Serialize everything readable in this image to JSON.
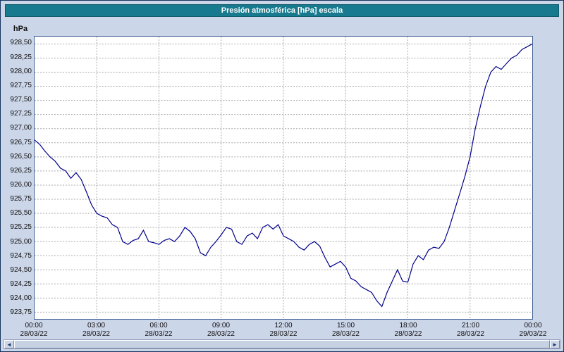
{
  "window": {
    "title": "Presión atmosférica [hPa] escala"
  },
  "colors": {
    "header_bg": "#187a8e",
    "window_bg": "#ccd6e9",
    "line": "#00008b",
    "grid": "#a8a8a8",
    "plot_border": "#3d5d91"
  },
  "scrollbar": {
    "left_arrow": "◄",
    "right_arrow": "►"
  },
  "chart_data": {
    "type": "line",
    "title": "Presión atmosférica [hPa] escala",
    "xlabel": "",
    "ylabel": "hPa",
    "line_color": "#00008b",
    "grid": true,
    "legend": false,
    "ylim": [
      923.63,
      928.63
    ],
    "ytick_values": [
      928.5,
      928.25,
      928.0,
      927.75,
      927.5,
      927.25,
      927.0,
      926.75,
      926.5,
      926.25,
      926.0,
      925.75,
      925.5,
      925.25,
      925.0,
      924.75,
      924.5,
      924.25,
      924.0,
      923.75
    ],
    "ytick_labels": [
      "928,50",
      "928,25",
      "928,00",
      "927,75",
      "927,50",
      "927,25",
      "927,00",
      "926,75",
      "926,50",
      "926,25",
      "926,00",
      "925,75",
      "925,50",
      "925,25",
      "925,00",
      "924,75",
      "924,50",
      "924,25",
      "924,00",
      "923,75"
    ],
    "xticks": [
      {
        "hour": 0,
        "time": "00:00",
        "date": "28/03/22"
      },
      {
        "hour": 3,
        "time": "03:00",
        "date": "28/03/22"
      },
      {
        "hour": 6,
        "time": "06:00",
        "date": "28/03/22"
      },
      {
        "hour": 9,
        "time": "09:00",
        "date": "28/03/22"
      },
      {
        "hour": 12,
        "time": "12:00",
        "date": "28/03/22"
      },
      {
        "hour": 15,
        "time": "15:00",
        "date": "28/03/22"
      },
      {
        "hour": 18,
        "time": "18:00",
        "date": "28/03/22"
      },
      {
        "hour": 21,
        "time": "21:00",
        "date": "28/03/22"
      },
      {
        "hour": 24,
        "time": "00:00",
        "date": "29/03/22"
      }
    ],
    "x_hours": [
      0,
      0.25,
      0.5,
      0.75,
      1,
      1.25,
      1.5,
      1.75,
      2,
      2.25,
      2.5,
      2.75,
      3,
      3.25,
      3.5,
      3.75,
      4,
      4.25,
      4.5,
      4.75,
      5,
      5.25,
      5.5,
      5.75,
      6,
      6.25,
      6.5,
      6.75,
      7,
      7.25,
      7.5,
      7.75,
      8,
      8.25,
      8.5,
      8.75,
      9,
      9.25,
      9.5,
      9.75,
      10,
      10.25,
      10.5,
      10.75,
      11,
      11.25,
      11.5,
      11.75,
      12,
      12.25,
      12.5,
      12.75,
      13,
      13.25,
      13.5,
      13.75,
      14,
      14.25,
      14.5,
      14.75,
      15,
      15.25,
      15.5,
      15.75,
      16,
      16.25,
      16.5,
      16.75,
      17,
      17.25,
      17.5,
      17.75,
      18,
      18.25,
      18.5,
      18.75,
      19,
      19.25,
      19.5,
      19.75,
      20,
      20.25,
      20.5,
      20.75,
      21,
      21.25,
      21.5,
      21.75,
      22,
      22.25,
      22.5,
      22.75,
      23,
      23.25,
      23.5,
      23.75,
      24
    ],
    "values": [
      926.8,
      926.72,
      926.6,
      926.5,
      926.42,
      926.3,
      926.25,
      926.12,
      926.22,
      926.1,
      925.88,
      925.65,
      925.5,
      925.45,
      925.42,
      925.3,
      925.25,
      925.0,
      924.95,
      925.02,
      925.05,
      925.2,
      925.0,
      924.98,
      924.95,
      925.02,
      925.05,
      925.0,
      925.1,
      925.25,
      925.18,
      925.05,
      924.8,
      924.75,
      924.9,
      925.0,
      925.12,
      925.25,
      925.22,
      925.0,
      924.95,
      925.1,
      925.15,
      925.05,
      925.25,
      925.3,
      925.22,
      925.3,
      925.1,
      925.05,
      925.0,
      924.9,
      924.85,
      924.95,
      925.0,
      924.92,
      924.72,
      924.55,
      924.6,
      924.65,
      924.55,
      924.35,
      924.3,
      924.2,
      924.15,
      924.1,
      923.95,
      923.85,
      924.1,
      924.3,
      924.5,
      924.3,
      924.28,
      924.6,
      924.75,
      924.68,
      924.85,
      924.9,
      924.88,
      925.0,
      925.25,
      925.55,
      925.85,
      926.15,
      926.5,
      927.0,
      927.4,
      927.75,
      928.0,
      928.1,
      928.05,
      928.15,
      928.25,
      928.3,
      928.4,
      928.45,
      928.5
    ]
  }
}
